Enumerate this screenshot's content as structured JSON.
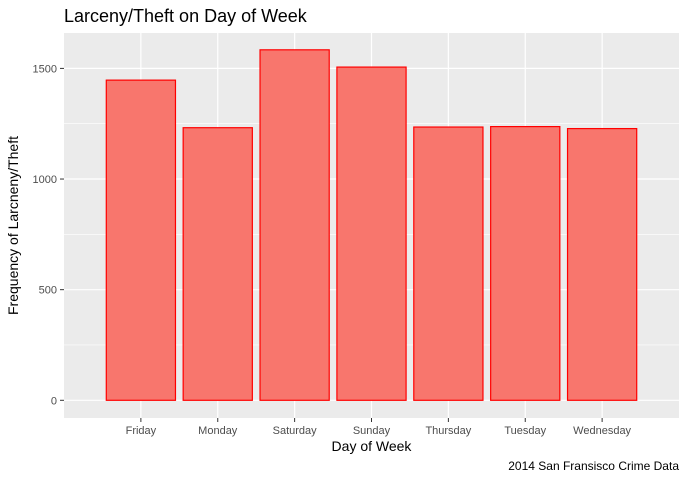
{
  "chart_data": {
    "type": "bar",
    "title": "Larceny/Theft on Day of Week",
    "xlabel": "Day of Week",
    "ylabel": "Frequency of Larcneny/Theft",
    "caption": "2014 San Fransisco Crime Data",
    "categories": [
      "Friday",
      "Monday",
      "Saturday",
      "Sunday",
      "Thursday",
      "Tuesday",
      "Wednesday"
    ],
    "values": [
      1447,
      1232,
      1584,
      1506,
      1235,
      1237,
      1228
    ],
    "yticks": [
      0,
      500,
      1000,
      1500
    ],
    "ylim": [
      -80,
      1660
    ],
    "grid": true,
    "colors": {
      "bar_fill": "#f8766d",
      "bar_stroke": "#ff0000",
      "panel_bg": "#ebebeb",
      "grid_major": "#ffffff"
    }
  }
}
